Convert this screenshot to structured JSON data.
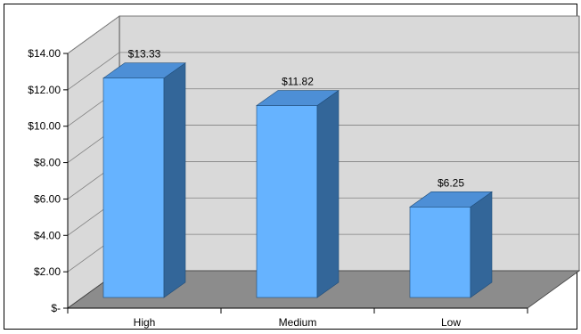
{
  "chart_data": {
    "type": "bar",
    "title": "",
    "xlabel": "",
    "ylabel": "",
    "categories": [
      "High",
      "Medium",
      "Low"
    ],
    "values": [
      13.33,
      11.82,
      6.25
    ],
    "data_labels": [
      "$13.33",
      "$11.82",
      "$6.25"
    ],
    "ylim": [
      0,
      14
    ],
    "yticks": [
      0,
      2,
      4,
      6,
      8,
      10,
      12,
      14
    ],
    "ytick_labels": [
      "$-",
      "$2.00",
      "$4.00",
      "$6.00",
      "$8.00",
      "$10.00",
      "$12.00",
      "$14.00"
    ],
    "grid": true,
    "legend": "none",
    "style": "3d-column"
  },
  "colors": {
    "bar_front": "#66b3ff",
    "bar_side": "#336699",
    "bar_top": "#4d8fd6",
    "wall": "#d9d9d9",
    "floor": "#8c8c8c",
    "grid": "#808080"
  }
}
